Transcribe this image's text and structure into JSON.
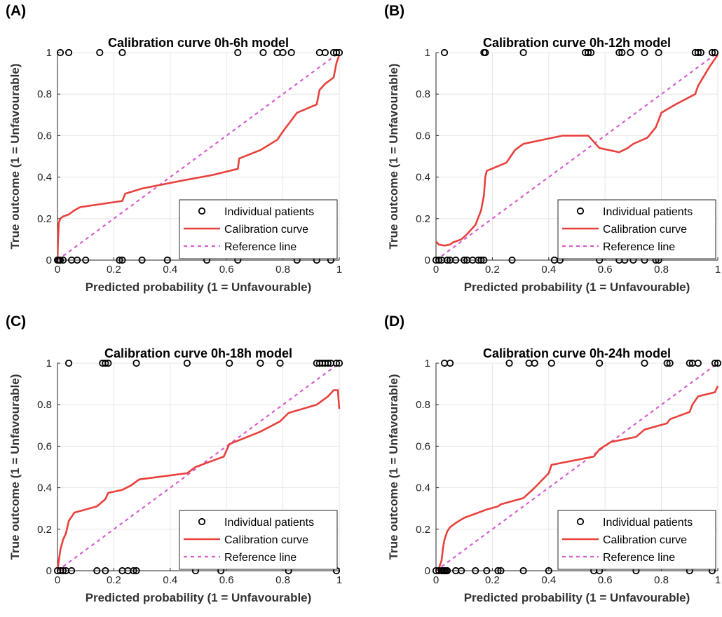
{
  "chart_data": [
    {
      "panel": "(A)",
      "type": "line",
      "title": "Calibration curve 0h-6h model",
      "xlabel": "Predicted probability (1 = Unfavourable)",
      "ylabel": "True outcome (1 = Unfavourable)",
      "xlim": [
        0,
        1
      ],
      "ylim": [
        0,
        1
      ],
      "xticks": [
        "0",
        "0.2",
        "0.4",
        "0.6",
        "0.8",
        "1"
      ],
      "yticks": [
        "0",
        "0.2",
        "0.4",
        "0.6",
        "0.8",
        "1"
      ],
      "grid": true,
      "legend_position": "bottom-right",
      "series": [
        {
          "name": "Individual patients",
          "kind": "scatter",
          "color": "#000000",
          "x": [
            0.01,
            0.04,
            0.15,
            0.23,
            0.64,
            0.73,
            0.78,
            0.8,
            0.83,
            0.93,
            0.95,
            0.98,
            0.99,
            1.0,
            0.0,
            0.005,
            0.01,
            0.02,
            0.05,
            0.07,
            0.1,
            0.22,
            0.23,
            0.3,
            0.39,
            0.53,
            0.64,
            0.85,
            0.92,
            0.97
          ],
          "y": [
            1,
            1,
            1,
            1,
            1,
            1,
            1,
            1,
            1,
            1,
            1,
            1,
            1,
            1,
            0,
            0,
            0,
            0,
            0,
            0,
            0,
            0,
            0,
            0,
            0,
            0,
            0,
            0,
            0,
            0
          ]
        },
        {
          "name": "Calibration curve",
          "kind": "line",
          "color": "#e8413c",
          "x": [
            0.0,
            0.002,
            0.005,
            0.01,
            0.02,
            0.04,
            0.06,
            0.08,
            0.23,
            0.24,
            0.3,
            0.45,
            0.55,
            0.64,
            0.645,
            0.72,
            0.78,
            0.8,
            0.85,
            0.92,
            0.93,
            0.95,
            0.98,
            0.99,
            1.0
          ],
          "y": [
            0.0,
            0.1,
            0.18,
            0.2,
            0.21,
            0.22,
            0.24,
            0.255,
            0.285,
            0.32,
            0.345,
            0.385,
            0.41,
            0.44,
            0.49,
            0.53,
            0.58,
            0.62,
            0.71,
            0.75,
            0.82,
            0.85,
            0.88,
            0.95,
            0.99
          ]
        },
        {
          "name": "Reference line",
          "kind": "line",
          "dashed": true,
          "color": "#d75fcf",
          "x": [
            0,
            1
          ],
          "y": [
            0,
            1
          ]
        }
      ]
    },
    {
      "panel": "(B)",
      "type": "line",
      "title": "Calibration curve 0h-12h model",
      "xlabel": "Predicted probability (1 = Unfavourable)",
      "ylabel": "True outcome (1 = Unfavourable)",
      "xlim": [
        0,
        1
      ],
      "ylim": [
        0,
        1
      ],
      "xticks": [
        "0",
        "0.2",
        "0.4",
        "0.6",
        "0.8",
        "1"
      ],
      "yticks": [
        "0",
        "0.2",
        "0.4",
        "0.6",
        "0.8",
        "1"
      ],
      "grid": true,
      "legend_position": "bottom-right",
      "series": [
        {
          "name": "Individual patients",
          "kind": "scatter",
          "color": "#000000",
          "x": [
            0.03,
            0.17,
            0.175,
            0.31,
            0.53,
            0.54,
            0.55,
            0.65,
            0.66,
            0.69,
            0.74,
            0.79,
            0.92,
            0.93,
            0.94,
            0.98,
            0.99,
            0.0,
            0.01,
            0.02,
            0.04,
            0.05,
            0.07,
            0.1,
            0.11,
            0.13,
            0.15,
            0.16,
            0.17,
            0.27,
            0.42,
            0.44,
            0.58,
            0.65,
            0.67,
            0.7,
            0.74,
            0.78,
            0.79
          ],
          "y": [
            1,
            1,
            1,
            1,
            1,
            1,
            1,
            1,
            1,
            1,
            1,
            1,
            1,
            1,
            1,
            1,
            1,
            0,
            0,
            0,
            0,
            0,
            0,
            0,
            0,
            0,
            0,
            0,
            0,
            0,
            0,
            0,
            0,
            0,
            0,
            0,
            0,
            0,
            0
          ]
        },
        {
          "name": "Calibration curve",
          "kind": "line",
          "color": "#e8413c",
          "x": [
            0.0,
            0.01,
            0.03,
            0.05,
            0.06,
            0.09,
            0.11,
            0.14,
            0.16,
            0.17,
            0.175,
            0.18,
            0.25,
            0.28,
            0.31,
            0.45,
            0.54,
            0.58,
            0.65,
            0.68,
            0.7,
            0.75,
            0.78,
            0.8,
            0.85,
            0.92,
            0.93,
            0.97,
            1.0
          ],
          "y": [
            0.09,
            0.075,
            0.07,
            0.075,
            0.085,
            0.1,
            0.125,
            0.17,
            0.24,
            0.31,
            0.4,
            0.43,
            0.47,
            0.53,
            0.56,
            0.6,
            0.6,
            0.54,
            0.52,
            0.54,
            0.56,
            0.59,
            0.64,
            0.71,
            0.75,
            0.8,
            0.84,
            0.93,
            0.99
          ]
        },
        {
          "name": "Reference line",
          "kind": "line",
          "dashed": true,
          "color": "#d75fcf",
          "x": [
            0,
            1
          ],
          "y": [
            0,
            1
          ]
        }
      ]
    },
    {
      "panel": "(C)",
      "type": "line",
      "title": "Calibration curve 0h-18h model",
      "xlabel": "Predicted probability (1 = Unfavourable)",
      "ylabel": "True outcome (1 = Unfavourable)",
      "xlim": [
        0,
        1
      ],
      "ylim": [
        0,
        1
      ],
      "xticks": [
        "0",
        "0.2",
        "0.4",
        "0.6",
        "0.8",
        "1"
      ],
      "yticks": [
        "0",
        "0.2",
        "0.4",
        "0.6",
        "0.8",
        "1"
      ],
      "grid": true,
      "legend_position": "bottom-right",
      "series": [
        {
          "name": "Individual patients",
          "kind": "scatter",
          "color": "#000000",
          "x": [
            0.04,
            0.16,
            0.17,
            0.18,
            0.28,
            0.46,
            0.61,
            0.72,
            0.79,
            0.92,
            0.93,
            0.94,
            0.95,
            0.96,
            0.97,
            0.99,
            1.0,
            0.0,
            0.01,
            0.02,
            0.03,
            0.05,
            0.14,
            0.17,
            0.23,
            0.25,
            0.27,
            0.28,
            0.49,
            0.58,
            0.82,
            0.99
          ],
          "y": [
            1,
            1,
            1,
            1,
            1,
            1,
            1,
            1,
            1,
            1,
            1,
            1,
            1,
            1,
            1,
            1,
            1,
            0,
            0,
            0,
            0,
            0,
            0,
            0,
            0,
            0,
            0,
            0,
            0,
            0,
            0,
            0
          ]
        },
        {
          "name": "Calibration curve",
          "kind": "line",
          "color": "#e8413c",
          "x": [
            0.0,
            0.005,
            0.01,
            0.02,
            0.03,
            0.04,
            0.06,
            0.14,
            0.17,
            0.18,
            0.23,
            0.26,
            0.28,
            0.29,
            0.46,
            0.49,
            0.59,
            0.61,
            0.72,
            0.79,
            0.82,
            0.92,
            0.96,
            0.98,
            0.995,
            1.0
          ],
          "y": [
            0.0,
            0.05,
            0.1,
            0.15,
            0.18,
            0.24,
            0.28,
            0.31,
            0.345,
            0.375,
            0.39,
            0.41,
            0.43,
            0.44,
            0.47,
            0.5,
            0.55,
            0.61,
            0.67,
            0.72,
            0.76,
            0.8,
            0.84,
            0.87,
            0.87,
            0.78
          ]
        },
        {
          "name": "Reference line",
          "kind": "line",
          "dashed": true,
          "color": "#d75fcf",
          "x": [
            0,
            1
          ],
          "y": [
            0,
            1
          ]
        }
      ]
    },
    {
      "panel": "(D)",
      "type": "line",
      "title": "Calibration curve 0h-24h model",
      "xlabel": "Predicted probability (1 = Unfavourable)",
      "ylabel": "True outcome (1 = Unfavourable)",
      "xlim": [
        0,
        1
      ],
      "ylim": [
        0,
        1
      ],
      "xticks": [
        "0",
        "0.2",
        "0.4",
        "0.6",
        "0.8",
        "1"
      ],
      "yticks": [
        "0",
        "0.2",
        "0.4",
        "0.6",
        "0.8",
        "1"
      ],
      "grid": true,
      "legend_position": "bottom-right",
      "series": [
        {
          "name": "Individual patients",
          "kind": "scatter",
          "color": "#000000",
          "x": [
            0.03,
            0.05,
            0.26,
            0.33,
            0.35,
            0.41,
            0.58,
            0.74,
            0.82,
            0.83,
            0.9,
            0.91,
            0.93,
            0.99,
            1.0,
            0.0,
            0.01,
            0.02,
            0.025,
            0.03,
            0.035,
            0.04,
            0.07,
            0.09,
            0.14,
            0.18,
            0.22,
            0.23,
            0.31,
            0.4,
            0.56,
            0.58,
            0.71,
            0.9,
            0.98
          ],
          "y": [
            1,
            1,
            1,
            1,
            1,
            1,
            1,
            1,
            1,
            1,
            1,
            1,
            1,
            1,
            1,
            0,
            0,
            0,
            0,
            0,
            0,
            0,
            0,
            0,
            0,
            0,
            0,
            0,
            0,
            0,
            0,
            0,
            0,
            0,
            0
          ]
        },
        {
          "name": "Calibration curve",
          "kind": "line",
          "color": "#e8413c",
          "x": [
            0.0,
            0.01,
            0.02,
            0.025,
            0.03,
            0.04,
            0.05,
            0.07,
            0.1,
            0.14,
            0.18,
            0.22,
            0.23,
            0.31,
            0.35,
            0.4,
            0.41,
            0.56,
            0.58,
            0.62,
            0.71,
            0.74,
            0.82,
            0.83,
            0.9,
            0.91,
            0.93,
            0.99,
            1.0
          ],
          "y": [
            0.0,
            0.01,
            0.05,
            0.11,
            0.15,
            0.19,
            0.21,
            0.23,
            0.255,
            0.275,
            0.295,
            0.31,
            0.32,
            0.35,
            0.4,
            0.47,
            0.51,
            0.55,
            0.585,
            0.62,
            0.645,
            0.68,
            0.71,
            0.73,
            0.765,
            0.8,
            0.84,
            0.86,
            0.89
          ]
        },
        {
          "name": "Reference line",
          "kind": "line",
          "dashed": true,
          "color": "#d75fcf",
          "x": [
            0,
            1
          ],
          "y": [
            0,
            1
          ]
        }
      ]
    }
  ]
}
